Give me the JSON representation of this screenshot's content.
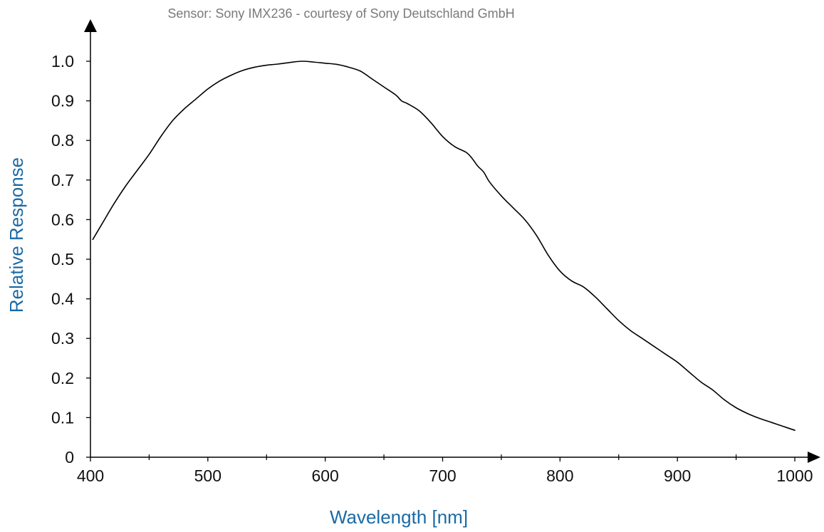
{
  "colors": {
    "axis": "#000000",
    "curve": "#000000",
    "axis_title": "#1b6aa5",
    "subtitle": "#7a7a7a"
  },
  "chart_data": {
    "type": "line",
    "subtitle": "Sensor: Sony IMX236 - courtesy of Sony Deutschland GmbH",
    "xlabel": "Wavelength [nm]",
    "ylabel": "Relative Response",
    "xlim": [
      400,
      1000
    ],
    "ylim": [
      0,
      1.0
    ],
    "grid": false,
    "xticks": [
      400,
      500,
      600,
      700,
      800,
      900,
      1000
    ],
    "xtick_labels": [
      "400",
      "500",
      "600",
      "700",
      "800",
      "900",
      "1000"
    ],
    "x_minor_ticks": [
      450,
      550,
      650,
      750,
      850,
      950
    ],
    "yticks": [
      0,
      0.1,
      0.2,
      0.3,
      0.4,
      0.5,
      0.6,
      0.7,
      0.8,
      0.9,
      1.0
    ],
    "ytick_labels": [
      "0",
      "0.1",
      "0.2",
      "0.3",
      "0.4",
      "0.5",
      "0.6",
      "0.7",
      "0.8",
      "0.9",
      "1.0"
    ],
    "series": [
      {
        "x": [
          402,
          410,
          420,
          430,
          440,
          450,
          460,
          470,
          480,
          490,
          500,
          510,
          520,
          530,
          540,
          550,
          560,
          570,
          580,
          590,
          600,
          610,
          620,
          630,
          640,
          650,
          660,
          665,
          670,
          680,
          690,
          700,
          710,
          720,
          725,
          730,
          735,
          740,
          750,
          760,
          770,
          780,
          790,
          800,
          810,
          820,
          830,
          840,
          850,
          860,
          870,
          880,
          890,
          900,
          910,
          920,
          930,
          940,
          950,
          960,
          970,
          980,
          990,
          1000
        ],
        "y": [
          0.55,
          0.59,
          0.64,
          0.685,
          0.725,
          0.765,
          0.81,
          0.85,
          0.88,
          0.905,
          0.93,
          0.95,
          0.965,
          0.977,
          0.985,
          0.99,
          0.993,
          0.997,
          1.0,
          0.998,
          0.995,
          0.992,
          0.985,
          0.975,
          0.955,
          0.935,
          0.915,
          0.9,
          0.893,
          0.875,
          0.845,
          0.81,
          0.785,
          0.77,
          0.755,
          0.735,
          0.72,
          0.695,
          0.66,
          0.63,
          0.6,
          0.56,
          0.51,
          0.47,
          0.445,
          0.43,
          0.405,
          0.375,
          0.345,
          0.32,
          0.3,
          0.28,
          0.26,
          0.24,
          0.215,
          0.19,
          0.17,
          0.145,
          0.125,
          0.11,
          0.098,
          0.088,
          0.078,
          0.068
        ]
      }
    ]
  }
}
